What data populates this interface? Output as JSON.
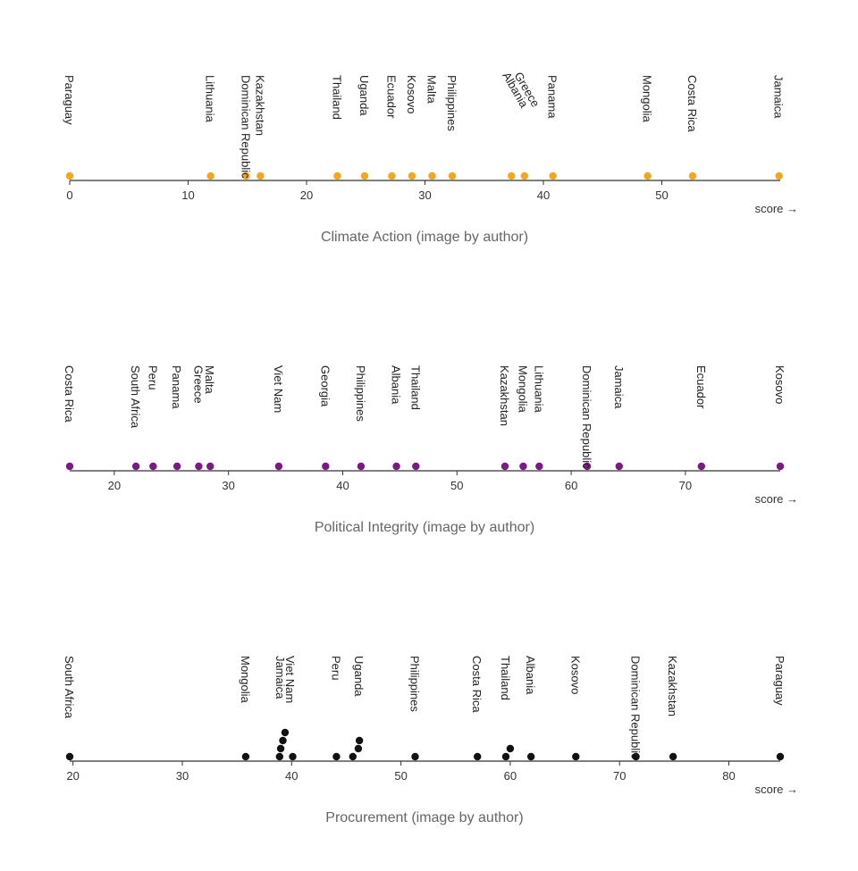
{
  "chart_data": [
    {
      "type": "scatter",
      "title": "Climate Action (image by author)",
      "xlabel": "score →",
      "xlim": [
        0,
        60
      ],
      "ticks": [
        0,
        10,
        20,
        30,
        40,
        50
      ],
      "color": "#f2a81d",
      "points": [
        {
          "label": "Paraguay",
          "x": 0,
          "stack": 0
        },
        {
          "label": "Lithuania",
          "x": 11.9,
          "stack": 0
        },
        {
          "label": "Dominican Republic",
          "x": 14.9,
          "stack": 0
        },
        {
          "label": "Kazakhstan",
          "x": 16.1,
          "stack": 0
        },
        {
          "label": "Thailand",
          "x": 22.6,
          "stack": 0
        },
        {
          "label": "Uganda",
          "x": 24.9,
          "stack": 0
        },
        {
          "label": "Ecuador",
          "x": 27.2,
          "stack": 0
        },
        {
          "label": "Kosovo",
          "x": 28.9,
          "stack": 0
        },
        {
          "label": "Malta",
          "x": 30.6,
          "stack": 0
        },
        {
          "label": "Philippines",
          "x": 32.3,
          "stack": 0
        },
        {
          "label": "Albania",
          "x": 37.3,
          "stack": 0
        },
        {
          "label": "Greece",
          "x": 38.4,
          "stack": 0
        },
        {
          "label": "Panama",
          "x": 40.8,
          "stack": 0
        },
        {
          "label": "Mongolia",
          "x": 48.8,
          "stack": 0
        },
        {
          "label": "Costa Rica",
          "x": 52.6,
          "stack": 0
        },
        {
          "label": "Jamaica",
          "x": 59.9,
          "stack": 0
        }
      ],
      "labels": [
        {
          "text": "Paraguay",
          "x": 0,
          "slant": false
        },
        {
          "text": "Lithuania",
          "x": 11.9,
          "slant": false
        },
        {
          "text": "Dominican Republic",
          "x": 14.9,
          "slant": false
        },
        {
          "text": "Kazakhstan",
          "x": 16.1,
          "slant": false
        },
        {
          "text": "Thailand",
          "x": 22.6,
          "slant": false
        },
        {
          "text": "Uganda",
          "x": 24.9,
          "slant": false
        },
        {
          "text": "Ecuador",
          "x": 27.2,
          "slant": false
        },
        {
          "text": "Kosovo",
          "x": 28.9,
          "slant": false
        },
        {
          "text": "Malta",
          "x": 30.6,
          "slant": false
        },
        {
          "text": "Philippines",
          "x": 32.3,
          "slant": false
        },
        {
          "text": "Albania",
          "x": 36.9,
          "slant": true
        },
        {
          "text": "Greece",
          "x": 37.9,
          "slant": true
        },
        {
          "text": "Panama",
          "x": 40.8,
          "slant": false
        },
        {
          "text": "Mongolia",
          "x": 48.8,
          "slant": false
        },
        {
          "text": "Costa Rica",
          "x": 52.6,
          "slant": false
        },
        {
          "text": "Jamaica",
          "x": 59.9,
          "slant": false
        }
      ]
    },
    {
      "type": "scatter",
      "title": "Political Integrity (image by author)",
      "xlabel": "score →",
      "xlim": [
        16.1,
        78.3
      ],
      "ticks": [
        20,
        30,
        40,
        50,
        60,
        70
      ],
      "color": "#7a1a82",
      "points": [
        {
          "label": "Costa Rica",
          "x": 16.1,
          "stack": 0
        },
        {
          "label": "South Africa",
          "x": 21.9,
          "stack": 0
        },
        {
          "label": "Peru",
          "x": 23.4,
          "stack": 0
        },
        {
          "label": "Panama",
          "x": 25.5,
          "stack": 0
        },
        {
          "label": "Greece",
          "x": 27.4,
          "stack": 0
        },
        {
          "label": "Malta",
          "x": 28.4,
          "stack": 0
        },
        {
          "label": "Viet Nam",
          "x": 34.4,
          "stack": 0
        },
        {
          "label": "Georgia",
          "x": 38.5,
          "stack": 0
        },
        {
          "label": "Philippines",
          "x": 41.6,
          "stack": 0
        },
        {
          "label": "Albania",
          "x": 44.7,
          "stack": 0
        },
        {
          "label": "Thailand",
          "x": 46.4,
          "stack": 0
        },
        {
          "label": "Kazakhstan",
          "x": 54.2,
          "stack": 0
        },
        {
          "label": "Mongolia",
          "x": 55.8,
          "stack": 0
        },
        {
          "label": "Lithuania",
          "x": 57.2,
          "stack": 0
        },
        {
          "label": "Dominican Republic",
          "x": 61.4,
          "stack": 0
        },
        {
          "label": "Jamaica",
          "x": 64.2,
          "stack": 0
        },
        {
          "label": "Ecuador",
          "x": 71.4,
          "stack": 0
        },
        {
          "label": "Kosovo",
          "x": 78.3,
          "stack": 0
        }
      ],
      "labels": [
        {
          "text": "Costa Rica",
          "x": 16.1,
          "slant": false
        },
        {
          "text": "South Africa",
          "x": 21.9,
          "slant": false
        },
        {
          "text": "Peru",
          "x": 23.4,
          "slant": false
        },
        {
          "text": "Panama",
          "x": 25.5,
          "slant": false
        },
        {
          "text": "Greece",
          "x": 27.4,
          "slant": false
        },
        {
          "text": "Malta",
          "x": 28.4,
          "slant": false
        },
        {
          "text": "Viet Nam",
          "x": 34.4,
          "slant": false
        },
        {
          "text": "Georgia",
          "x": 38.5,
          "slant": false
        },
        {
          "text": "Philippines",
          "x": 41.6,
          "slant": false
        },
        {
          "text": "Albania",
          "x": 44.7,
          "slant": false
        },
        {
          "text": "Thailand",
          "x": 46.4,
          "slant": false
        },
        {
          "text": "Kazakhstan",
          "x": 54.2,
          "slant": false
        },
        {
          "text": "Mongolia",
          "x": 55.8,
          "slant": false
        },
        {
          "text": "Lithuania",
          "x": 57.2,
          "slant": false
        },
        {
          "text": "Dominican Republic",
          "x": 61.4,
          "slant": false
        },
        {
          "text": "Jamaica",
          "x": 64.2,
          "slant": false
        },
        {
          "text": "Ecuador",
          "x": 71.4,
          "slant": false
        },
        {
          "text": "Kosovo",
          "x": 78.3,
          "slant": false
        }
      ]
    },
    {
      "type": "scatter",
      "title": "Procurement (image by author)",
      "xlabel": "score →",
      "xlim": [
        19.7,
        84.7
      ],
      "ticks": [
        20,
        30,
        40,
        50,
        60,
        70,
        80
      ],
      "color": "#111111",
      "points": [
        {
          "label": "South Africa",
          "x": 19.7,
          "stack": 0
        },
        {
          "label": "Mongolia",
          "x": 35.8,
          "stack": 0
        },
        {
          "label": "Viet Nam",
          "x": 39.4,
          "stack": 3
        },
        {
          "label": "Jamaica",
          "x": 39.2,
          "stack": 2
        },
        {
          "label": "",
          "x": 39.0,
          "stack": 1
        },
        {
          "label": "",
          "x": 38.9,
          "stack": 0
        },
        {
          "label": "",
          "x": 40.1,
          "stack": 0
        },
        {
          "label": "Peru",
          "x": 44.1,
          "stack": 0
        },
        {
          "label": "Uganda",
          "x": 46.2,
          "stack": 2
        },
        {
          "label": "",
          "x": 46.1,
          "stack": 1
        },
        {
          "label": "",
          "x": 45.6,
          "stack": 0
        },
        {
          "label": "Philippines",
          "x": 51.3,
          "stack": 0
        },
        {
          "label": "Costa Rica",
          "x": 57.0,
          "stack": 0
        },
        {
          "label": "Thailand",
          "x": 60.0,
          "stack": 1
        },
        {
          "label": "",
          "x": 59.6,
          "stack": 0
        },
        {
          "label": "Albania",
          "x": 61.9,
          "stack": 0
        },
        {
          "label": "Kosovo",
          "x": 66.0,
          "stack": 0
        },
        {
          "label": "Dominican Republic",
          "x": 71.5,
          "stack": 0
        },
        {
          "label": "Kazakhstan",
          "x": 74.9,
          "stack": 0
        },
        {
          "label": "Paraguay",
          "x": 84.7,
          "stack": 0
        }
      ],
      "labels": [
        {
          "text": "South Africa",
          "x": 19.7,
          "slant": false
        },
        {
          "text": "Mongolia",
          "x": 35.8,
          "slant": false
        },
        {
          "text": "Jamaica",
          "x": 39.0,
          "slant": false
        },
        {
          "text": "Viet Nam",
          "x": 39.9,
          "slant": false
        },
        {
          "text": "Peru",
          "x": 44.1,
          "slant": false
        },
        {
          "text": "Uganda",
          "x": 46.2,
          "slant": false
        },
        {
          "text": "Philippines",
          "x": 51.3,
          "slant": false
        },
        {
          "text": "Costa Rica",
          "x": 57.0,
          "slant": false
        },
        {
          "text": "Thailand",
          "x": 59.6,
          "slant": false
        },
        {
          "text": "Albania",
          "x": 61.9,
          "slant": false
        },
        {
          "text": "Kosovo",
          "x": 66.0,
          "slant": false
        },
        {
          "text": "Dominican Republic",
          "x": 71.5,
          "slant": false
        },
        {
          "text": "Kazakhstan",
          "x": 74.9,
          "slant": false
        },
        {
          "text": "Paraguay",
          "x": 84.7,
          "slant": false
        }
      ]
    }
  ]
}
